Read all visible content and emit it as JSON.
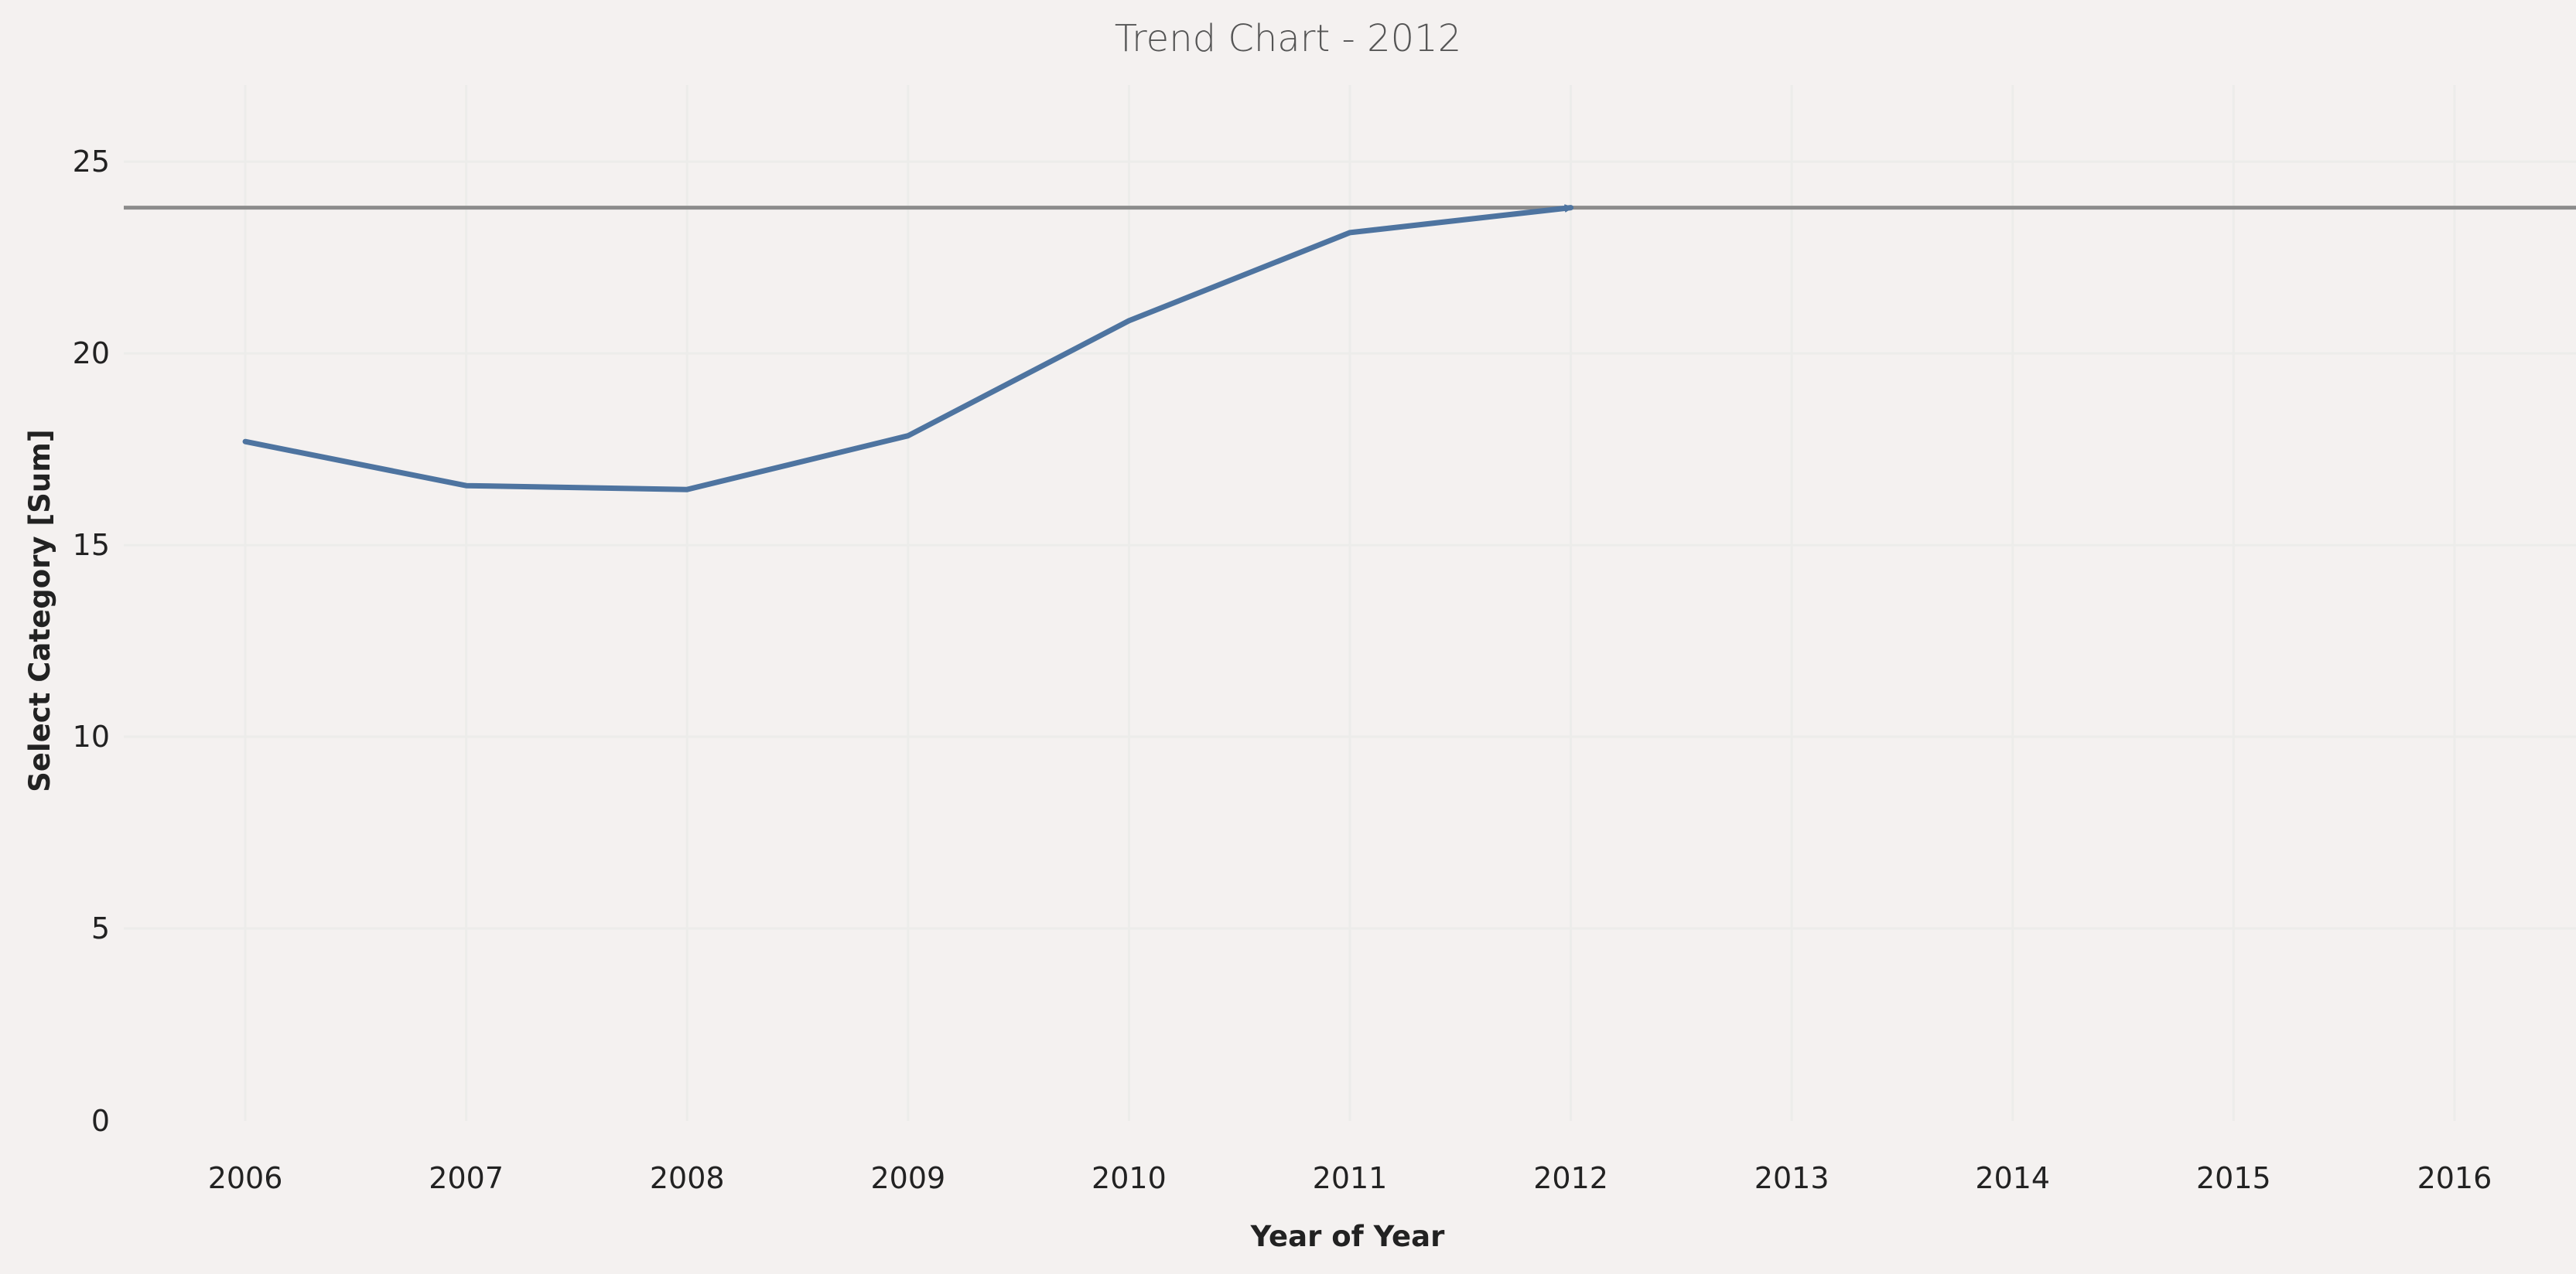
{
  "chart_data": {
    "type": "line",
    "title": "Trend Chart - 2012",
    "xlabel": "Year of Year",
    "ylabel": "Select Category [Sum]",
    "x_ticks": [
      "2006",
      "2007",
      "2008",
      "2009",
      "2010",
      "2011",
      "2012",
      "2013",
      "2014",
      "2015",
      "2016"
    ],
    "y_ticks": [
      "0",
      "5",
      "10",
      "15",
      "20",
      "25"
    ],
    "xlim": [
      2005.45,
      2016.55
    ],
    "ylim": [
      0,
      27.2
    ],
    "grid": true,
    "series": [
      {
        "x": [
          2006,
          2007,
          2008,
          2009,
          2010,
          2011,
          2012
        ],
        "values": [
          17.7,
          16.55,
          16.45,
          17.85,
          20.85,
          23.15,
          23.8
        ],
        "color": "#4e74a0"
      }
    ],
    "reference_line": {
      "value": 23.8,
      "color": "#8c8c8c"
    }
  }
}
